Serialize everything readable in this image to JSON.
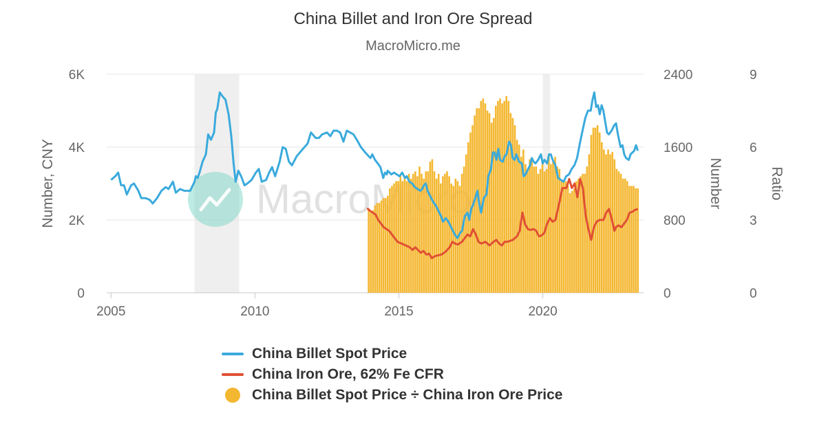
{
  "title": "China Billet and Iron Ore Spread",
  "subtitle": "MacroMicro.me",
  "watermark": "MacroMicro",
  "colors": {
    "billet": "#3aaadc",
    "iron_ore": "#e05033",
    "ratio": "#f4b731",
    "recession": "#efefef",
    "grid": "#e6e6e6",
    "watermark": "#6ed3c2"
  },
  "legend": [
    {
      "label": "China Billet Spot Price",
      "symbol": "line"
    },
    {
      "label": "China Iron Ore, 62% Fe CFR",
      "symbol": "line"
    },
    {
      "label": "China Billet Spot Price ÷ China Iron Ore Price",
      "symbol": "dot"
    }
  ],
  "chart_data": {
    "type": "line",
    "title": "China Billet and Iron Ore Spread",
    "subtitle": "MacroMicro.me",
    "x_axis": {
      "min": 2005,
      "max": 2023.5,
      "ticks": [
        "2005",
        "2010",
        "2015",
        "2020"
      ]
    },
    "y_axes": [
      {
        "title": "Number, CNY",
        "min": 0,
        "max": 6000,
        "ticks": [
          "0",
          "2K",
          "4K",
          "6K"
        ],
        "position": "left"
      },
      {
        "title": "Number",
        "min": 0,
        "max": 2400,
        "ticks": [
          "0",
          "800",
          "1600",
          "2400"
        ],
        "position": "right"
      },
      {
        "title": "Ratio",
        "min": 0,
        "max": 9,
        "ticks": [
          "0",
          "3",
          "6",
          "9"
        ],
        "position": "right"
      }
    ],
    "recession_bands": [
      [
        2007.9,
        2009.45
      ],
      [
        2020.0,
        2020.25
      ]
    ],
    "grid": true,
    "legend_position": "bottom",
    "series": [
      {
        "name": "China Billet Spot Price",
        "type": "line",
        "axis": 0,
        "points": [
          [
            2005.0,
            3100
          ],
          [
            2005.15,
            3200
          ],
          [
            2005.25,
            3300
          ],
          [
            2005.35,
            2950
          ],
          [
            2005.45,
            2950
          ],
          [
            2005.55,
            2700
          ],
          [
            2005.7,
            2950
          ],
          [
            2005.8,
            3000
          ],
          [
            2005.95,
            2800
          ],
          [
            2006.05,
            2600
          ],
          [
            2006.2,
            2600
          ],
          [
            2006.35,
            2550
          ],
          [
            2006.45,
            2450
          ],
          [
            2006.6,
            2600
          ],
          [
            2006.75,
            2800
          ],
          [
            2006.9,
            2900
          ],
          [
            2007.0,
            2850
          ],
          [
            2007.15,
            3050
          ],
          [
            2007.25,
            2750
          ],
          [
            2007.4,
            2850
          ],
          [
            2007.5,
            2800
          ],
          [
            2007.65,
            2800
          ],
          [
            2007.8,
            3000
          ],
          [
            2007.95,
            3050
          ],
          [
            2008.1,
            3150
          ],
          [
            2008.25,
            3300
          ],
          [
            2008.45,
            3750
          ],
          [
            2008.6,
            4000
          ],
          [
            2008.7,
            4200
          ],
          [
            2008.8,
            4350
          ],
          [
            2008.9,
            4300
          ],
          [
            2009.0,
            4250
          ],
          [
            2009.1,
            4450
          ],
          [
            2009.2,
            4350
          ],
          [
            2009.3,
            4400
          ],
          [
            2009.4,
            4800
          ],
          [
            2009.5,
            4650
          ],
          [
            2009.6,
            4900
          ],
          [
            2009.65,
            5050
          ],
          [
            2009.75,
            5200
          ],
          [
            2009.85,
            5450
          ],
          [
            2009.9,
            5550
          ],
          [
            2010.0,
            5450
          ],
          [
            2010.15,
            5350
          ],
          [
            2009.1,
            4350
          ]
        ]
      }
    ]
  }
}
